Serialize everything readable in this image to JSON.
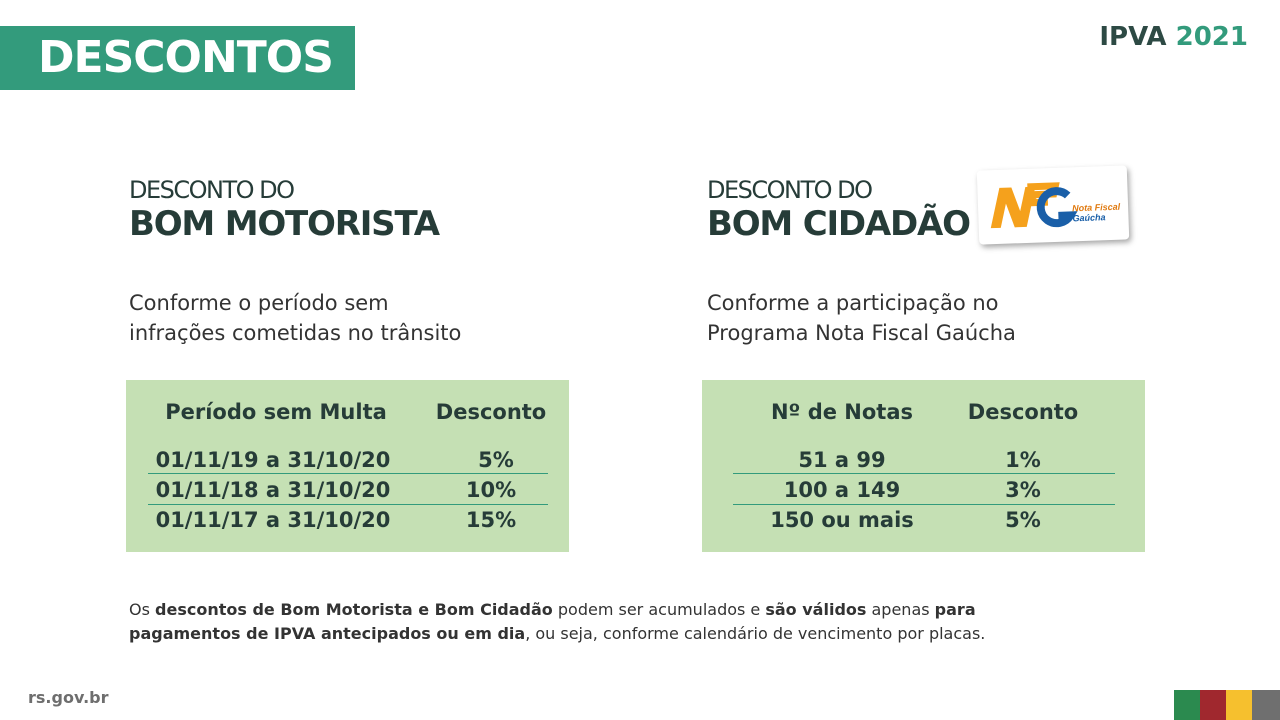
{
  "header": {
    "title": "DESCONTOS",
    "ipva_label": "IPVA",
    "ipva_year": "2021"
  },
  "left": {
    "pre": "DESCONTO DO",
    "title": "BOM MOTORISTA",
    "subtitle_line1": "Conforme o período sem",
    "subtitle_line2": "infrações cometidas no trânsito",
    "table": {
      "headers": [
        "Período sem Multa",
        "Desconto"
      ],
      "rows": [
        [
          "01/11/19 a 31/10/20",
          "5%"
        ],
        [
          "01/11/18 a 31/10/20",
          "10%"
        ],
        [
          "01/11/17 a 31/10/20",
          "15%"
        ]
      ]
    }
  },
  "right": {
    "pre": "DESCONTO DO",
    "title": "BOM CIDADÃO",
    "subtitle_line1": "Conforme a participação no",
    "subtitle_line2": "Programa Nota Fiscal Gaúcha",
    "logo_text": "NFG Nota Fiscal Gaúcha",
    "table": {
      "headers": [
        "Nº de Notas",
        "Desconto"
      ],
      "rows": [
        [
          "51 a 99",
          "1%"
        ],
        [
          "100 a 149",
          "3%"
        ],
        [
          "150 ou mais",
          "5%"
        ]
      ]
    }
  },
  "note": {
    "p1": "Os ",
    "b1": "descontos de Bom Motorista e Bom Cidadão",
    "p2": " podem ser acumulados e ",
    "b2": "são válidos",
    "p3": " apenas ",
    "b3": "para pagamentos de IPVA antecipados ou em dia",
    "p4": ", ou seja, conforme calendário de vencimento por placas."
  },
  "footer": {
    "site": "rs.gov.br",
    "flag_colors": [
      "#2b8a4f",
      "#a0282e",
      "#f6c02e",
      "#6f6f6f"
    ]
  },
  "colors": {
    "accent": "#339b7c",
    "table_bg": "#c5e0b4",
    "text": "#263c38"
  }
}
